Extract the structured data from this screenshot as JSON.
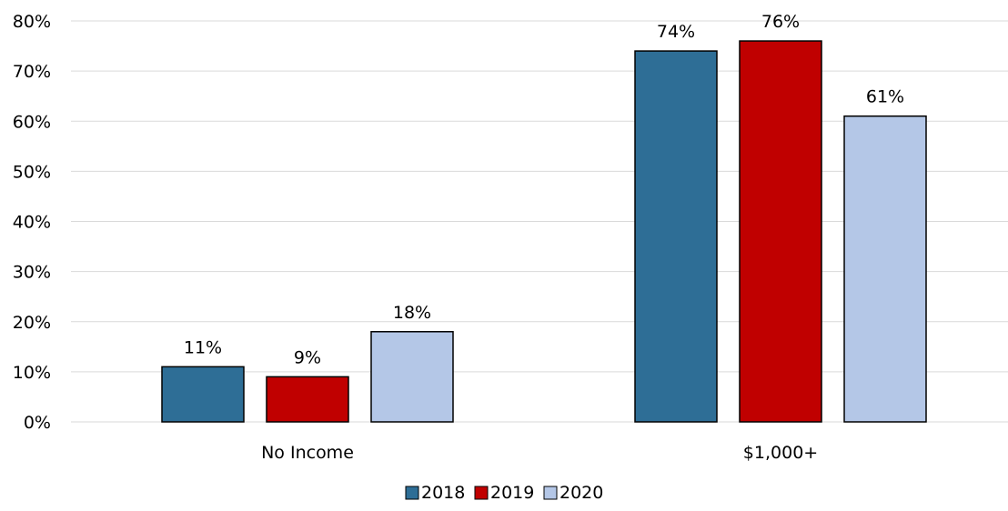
{
  "chart_data": {
    "type": "bar",
    "categories": [
      "No Income",
      "$1,000+"
    ],
    "series": [
      {
        "name": "2018",
        "values": [
          11,
          74
        ],
        "labels": [
          "11%",
          "74%"
        ],
        "color": "#2e6e96"
      },
      {
        "name": "2019",
        "values": [
          9,
          76
        ],
        "labels": [
          "9%",
          "76%"
        ],
        "color": "#c00000"
      },
      {
        "name": "2020",
        "values": [
          18,
          61
        ],
        "labels": [
          "18%",
          "61%"
        ],
        "color": "#b4c7e7"
      }
    ],
    "ylim": [
      0,
      80
    ],
    "yticks": [
      {
        "value": 0,
        "label": "0%"
      },
      {
        "value": 10,
        "label": "10%"
      },
      {
        "value": 20,
        "label": "20%"
      },
      {
        "value": 30,
        "label": "30%"
      },
      {
        "value": 40,
        "label": "40%"
      },
      {
        "value": 50,
        "label": "50%"
      },
      {
        "value": 60,
        "label": "60%"
      },
      {
        "value": 70,
        "label": "70%"
      },
      {
        "value": 80,
        "label": "80%"
      }
    ],
    "grid": true,
    "legend": "bottom-center",
    "gridline_color": "#d9d9d9",
    "bar_outline_color": "#000000"
  }
}
